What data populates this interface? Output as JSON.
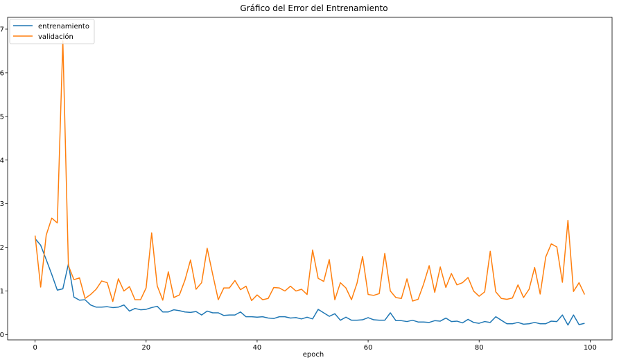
{
  "chart_data": {
    "type": "line",
    "title": "Gráfico del Error del Entrenamiento",
    "xlabel": "epoch",
    "ylabel": "",
    "xlim": [
      -4.95,
      103.95
    ],
    "ylim": [
      -0.12,
      7.27
    ],
    "xticks": [
      0,
      20,
      40,
      60,
      80,
      100
    ],
    "yticks": [
      0,
      1,
      2,
      3,
      4,
      5,
      6,
      7
    ],
    "grid": false,
    "legend_position": "top-left",
    "x": [
      0,
      1,
      2,
      3,
      4,
      5,
      6,
      7,
      8,
      9,
      10,
      11,
      12,
      13,
      14,
      15,
      16,
      17,
      18,
      19,
      20,
      21,
      22,
      23,
      24,
      25,
      26,
      27,
      28,
      29,
      30,
      31,
      32,
      33,
      34,
      35,
      36,
      37,
      38,
      39,
      40,
      41,
      42,
      43,
      44,
      45,
      46,
      47,
      48,
      49,
      50,
      51,
      52,
      53,
      54,
      55,
      56,
      57,
      58,
      59,
      60,
      61,
      62,
      63,
      64,
      65,
      66,
      67,
      68,
      69,
      70,
      71,
      72,
      73,
      74,
      75,
      76,
      77,
      78,
      79,
      80,
      81,
      82,
      83,
      84,
      85,
      86,
      87,
      88,
      89,
      90,
      91,
      92,
      93,
      94,
      95,
      96,
      97,
      98,
      99
    ],
    "series": [
      {
        "name": "entrenamiento",
        "color": "#1f77b4",
        "values": [
          2.2,
          2.05,
          1.72,
          1.38,
          1.02,
          1.05,
          1.62,
          0.86,
          0.79,
          0.8,
          0.68,
          0.63,
          0.63,
          0.64,
          0.62,
          0.63,
          0.68,
          0.54,
          0.6,
          0.57,
          0.58,
          0.62,
          0.65,
          0.52,
          0.52,
          0.57,
          0.55,
          0.52,
          0.51,
          0.53,
          0.45,
          0.54,
          0.5,
          0.5,
          0.44,
          0.45,
          0.45,
          0.52,
          0.41,
          0.41,
          0.4,
          0.41,
          0.38,
          0.37,
          0.41,
          0.41,
          0.38,
          0.39,
          0.36,
          0.4,
          0.36,
          0.58,
          0.5,
          0.42,
          0.48,
          0.33,
          0.4,
          0.33,
          0.33,
          0.34,
          0.39,
          0.34,
          0.33,
          0.33,
          0.5,
          0.32,
          0.32,
          0.3,
          0.33,
          0.29,
          0.29,
          0.28,
          0.32,
          0.31,
          0.38,
          0.3,
          0.31,
          0.27,
          0.35,
          0.28,
          0.26,
          0.3,
          0.28,
          0.41,
          0.33,
          0.25,
          0.25,
          0.28,
          0.24,
          0.25,
          0.28,
          0.25,
          0.25,
          0.31,
          0.3,
          0.45,
          0.22,
          0.45,
          0.23,
          0.26
        ]
      },
      {
        "name": "validación",
        "color": "#ff7f0e",
        "values": [
          2.27,
          1.09,
          2.28,
          2.67,
          2.56,
          6.73,
          1.58,
          1.26,
          1.3,
          0.83,
          0.92,
          1.04,
          1.23,
          1.19,
          0.76,
          1.28,
          1.0,
          1.1,
          0.8,
          0.8,
          1.07,
          2.33,
          1.12,
          0.79,
          1.44,
          0.85,
          0.91,
          1.25,
          1.71,
          1.04,
          1.19,
          1.98,
          1.38,
          0.8,
          1.07,
          1.07,
          1.24,
          1.03,
          1.11,
          0.78,
          0.91,
          0.8,
          0.83,
          1.08,
          1.07,
          1.0,
          1.11,
          1.0,
          1.04,
          0.92,
          1.94,
          1.29,
          1.22,
          1.72,
          0.8,
          1.19,
          1.07,
          0.8,
          1.18,
          1.79,
          0.92,
          0.9,
          0.94,
          1.86,
          1.0,
          0.85,
          0.83,
          1.28,
          0.77,
          0.81,
          1.16,
          1.58,
          0.97,
          1.55,
          1.08,
          1.4,
          1.14,
          1.19,
          1.31,
          1.0,
          0.88,
          0.98,
          1.91,
          0.98,
          0.83,
          0.81,
          0.84,
          1.14,
          0.85,
          1.04,
          1.54,
          0.93,
          1.78,
          2.08,
          2.01,
          1.2,
          2.62,
          0.99,
          1.19,
          0.92
        ]
      }
    ]
  }
}
